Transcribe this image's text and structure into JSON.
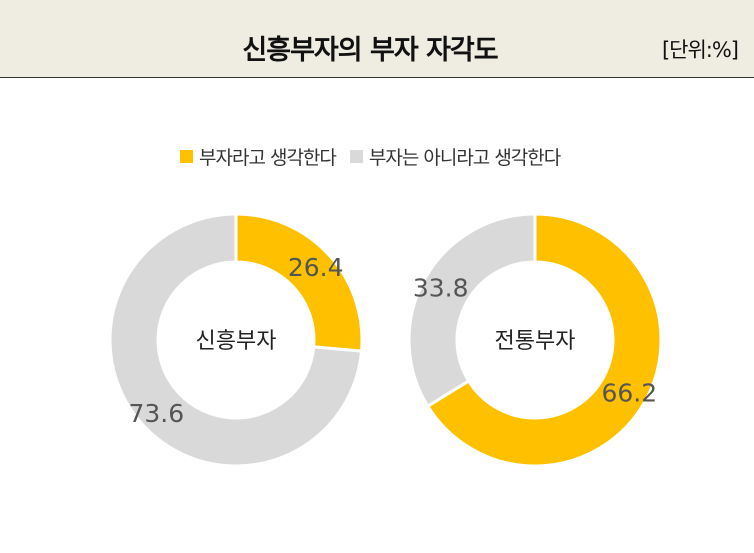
{
  "header": {
    "title": "신흥부자의 부자 자각도",
    "unit": "[단위:%]"
  },
  "colors": {
    "header_bg": "#efede2",
    "accent": "#ffc000",
    "secondary": "#d9d9d9"
  },
  "chart_data": {
    "type": "pie",
    "variant": "donut",
    "legend_position": "top",
    "series_names": [
      "부자라고 생각한다",
      "부자는 아니라고 생각한다"
    ],
    "charts": [
      {
        "center_label": "신흥부자",
        "values": [
          26.4,
          73.6
        ]
      },
      {
        "center_label": "전통부자",
        "values": [
          66.2,
          33.8
        ]
      }
    ]
  }
}
